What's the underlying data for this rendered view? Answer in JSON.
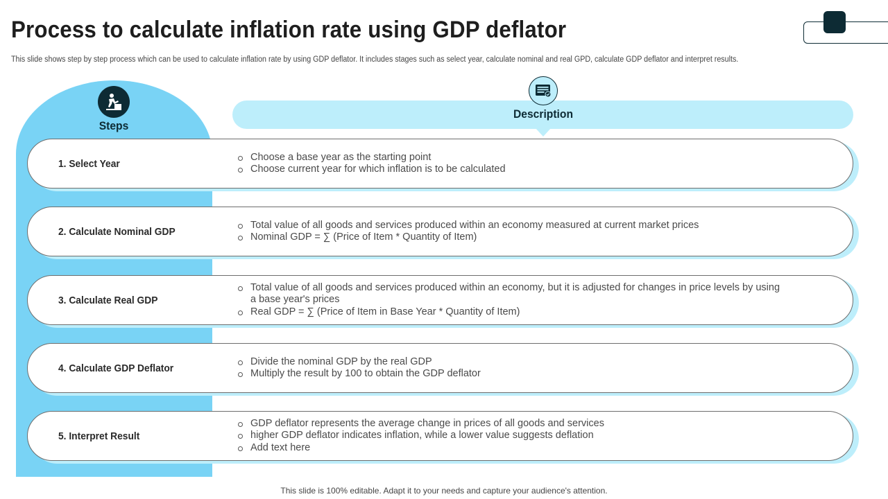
{
  "header": {
    "title": "Process to calculate inflation rate using GDP deflator",
    "subtitle": "This slide shows step by step process which can be used to calculate inflation rate by using GDP deflator. It includes stages such as select year, calculate nominal and real GPD, calculate GDP deflator and interpret results."
  },
  "steps_header": {
    "label": "Steps",
    "icon": "worker-icon"
  },
  "description_header": {
    "label": "Description",
    "icon": "document-list-icon"
  },
  "colors": {
    "accent": "#79d3f5",
    "light": "#bdeefb",
    "dark": "#0d2b34"
  },
  "rows": [
    {
      "step": "1. Select Year",
      "bullets": [
        "Choose a base year as the starting point",
        "Choose current year for which inflation  is to be calculated"
      ]
    },
    {
      "step": "2. Calculate Nominal GDP",
      "bullets": [
        "Total value of all goods and services produced within an economy measured at current market prices",
        "Nominal GDP = ∑ (Price of Item * Quantity of Item)"
      ]
    },
    {
      "step": "3. Calculate Real GDP",
      "bullets": [
        "Total value of all goods and services produced within an economy, but it is adjusted for changes in price levels by using a base year's prices",
        "Real GDP = ∑ (Price of Item in Base Year * Quantity of Item)"
      ]
    },
    {
      "step": "4. Calculate GDP Deflator",
      "bullets": [
        "Divide the nominal GDP by the real GDP",
        "Multiply  the result by 100 to obtain the GDP deflator"
      ]
    },
    {
      "step": "5. Interpret Result",
      "bullets": [
        "GDP deflator represents the average change in prices of all goods and services",
        "higher GDP deflator indicates inflation,  while a lower value suggests deflation",
        "Add text here"
      ]
    }
  ],
  "footer": "This slide is 100% editable. Adapt it to your needs and capture your audience's attention."
}
